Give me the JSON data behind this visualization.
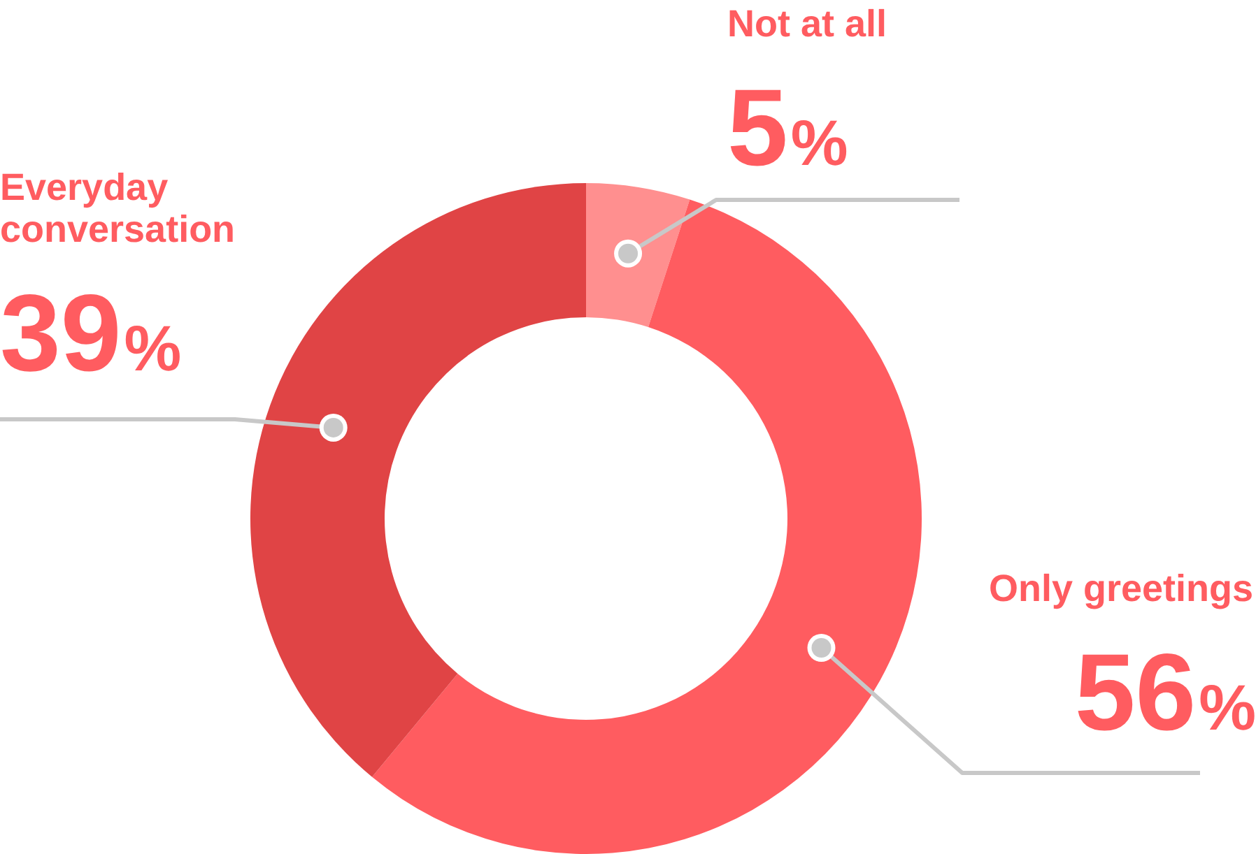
{
  "chart_data": {
    "type": "donut",
    "categories": [
      "Not at all",
      "Only greetings",
      "Everyday conversation"
    ],
    "values": [
      5,
      56,
      39
    ],
    "colors": [
      "#ff8f8f",
      "#ff5c60",
      "#e04445"
    ],
    "value_labels": [
      "5%",
      "56%",
      "39%"
    ],
    "legend": false
  }
}
